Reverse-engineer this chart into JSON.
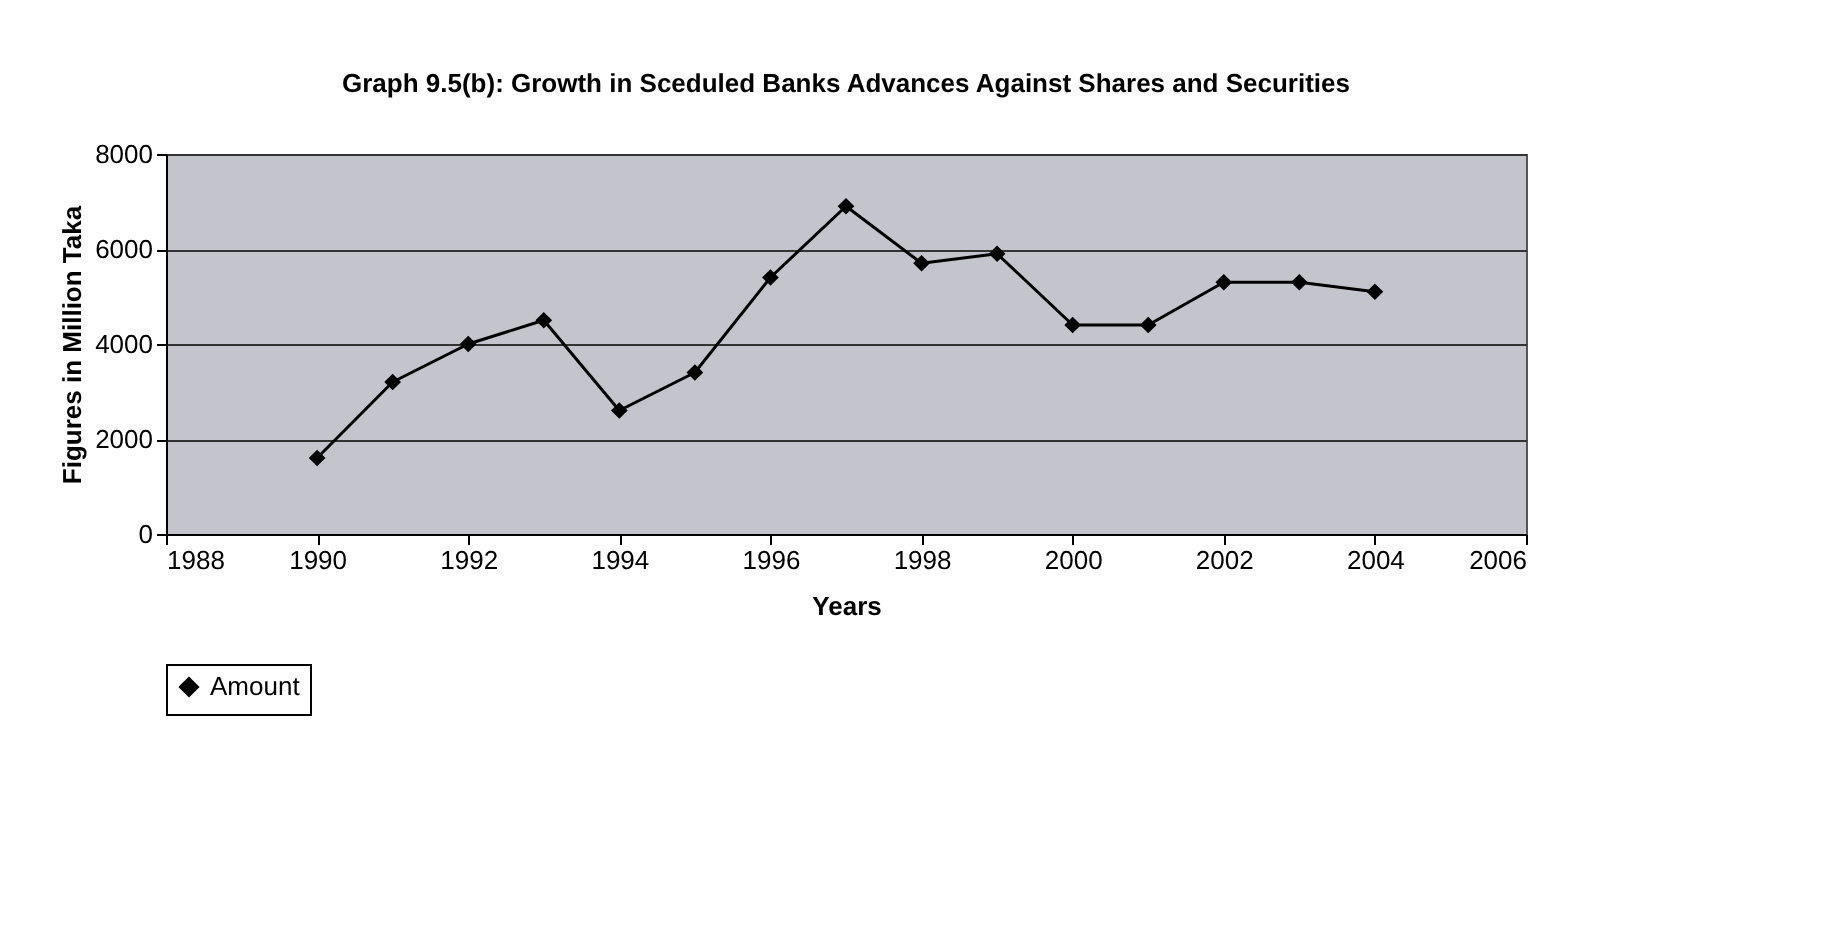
{
  "chart_data": {
    "type": "line",
    "title": "Graph 9.5(b):  Growth in Sceduled Banks Advances Against Shares and Securities",
    "xlabel": "Years",
    "ylabel": "Figures in Million Taka",
    "x": [
      1990,
      1991,
      1992,
      1993,
      1994,
      1995,
      1996,
      1997,
      1998,
      1999,
      2000,
      2001,
      2002,
      2003,
      2004
    ],
    "series": [
      {
        "name": "Amount",
        "color": "#000000",
        "values": [
          1600,
          3200,
          4000,
          4500,
          2600,
          3400,
          5400,
          6900,
          5700,
          5900,
          4400,
          4400,
          5300,
          5300,
          5100
        ]
      }
    ],
    "xlim": [
      1988,
      2006
    ],
    "xticks": [
      1988,
      1990,
      1992,
      1994,
      1996,
      1998,
      2000,
      2002,
      2004,
      2006
    ],
    "ylim": [
      0,
      8000
    ],
    "yticks": [
      0,
      2000,
      4000,
      6000,
      8000
    ],
    "grid": "y",
    "legend": "bottom",
    "marker": "diamond",
    "line_style": "solid"
  }
}
